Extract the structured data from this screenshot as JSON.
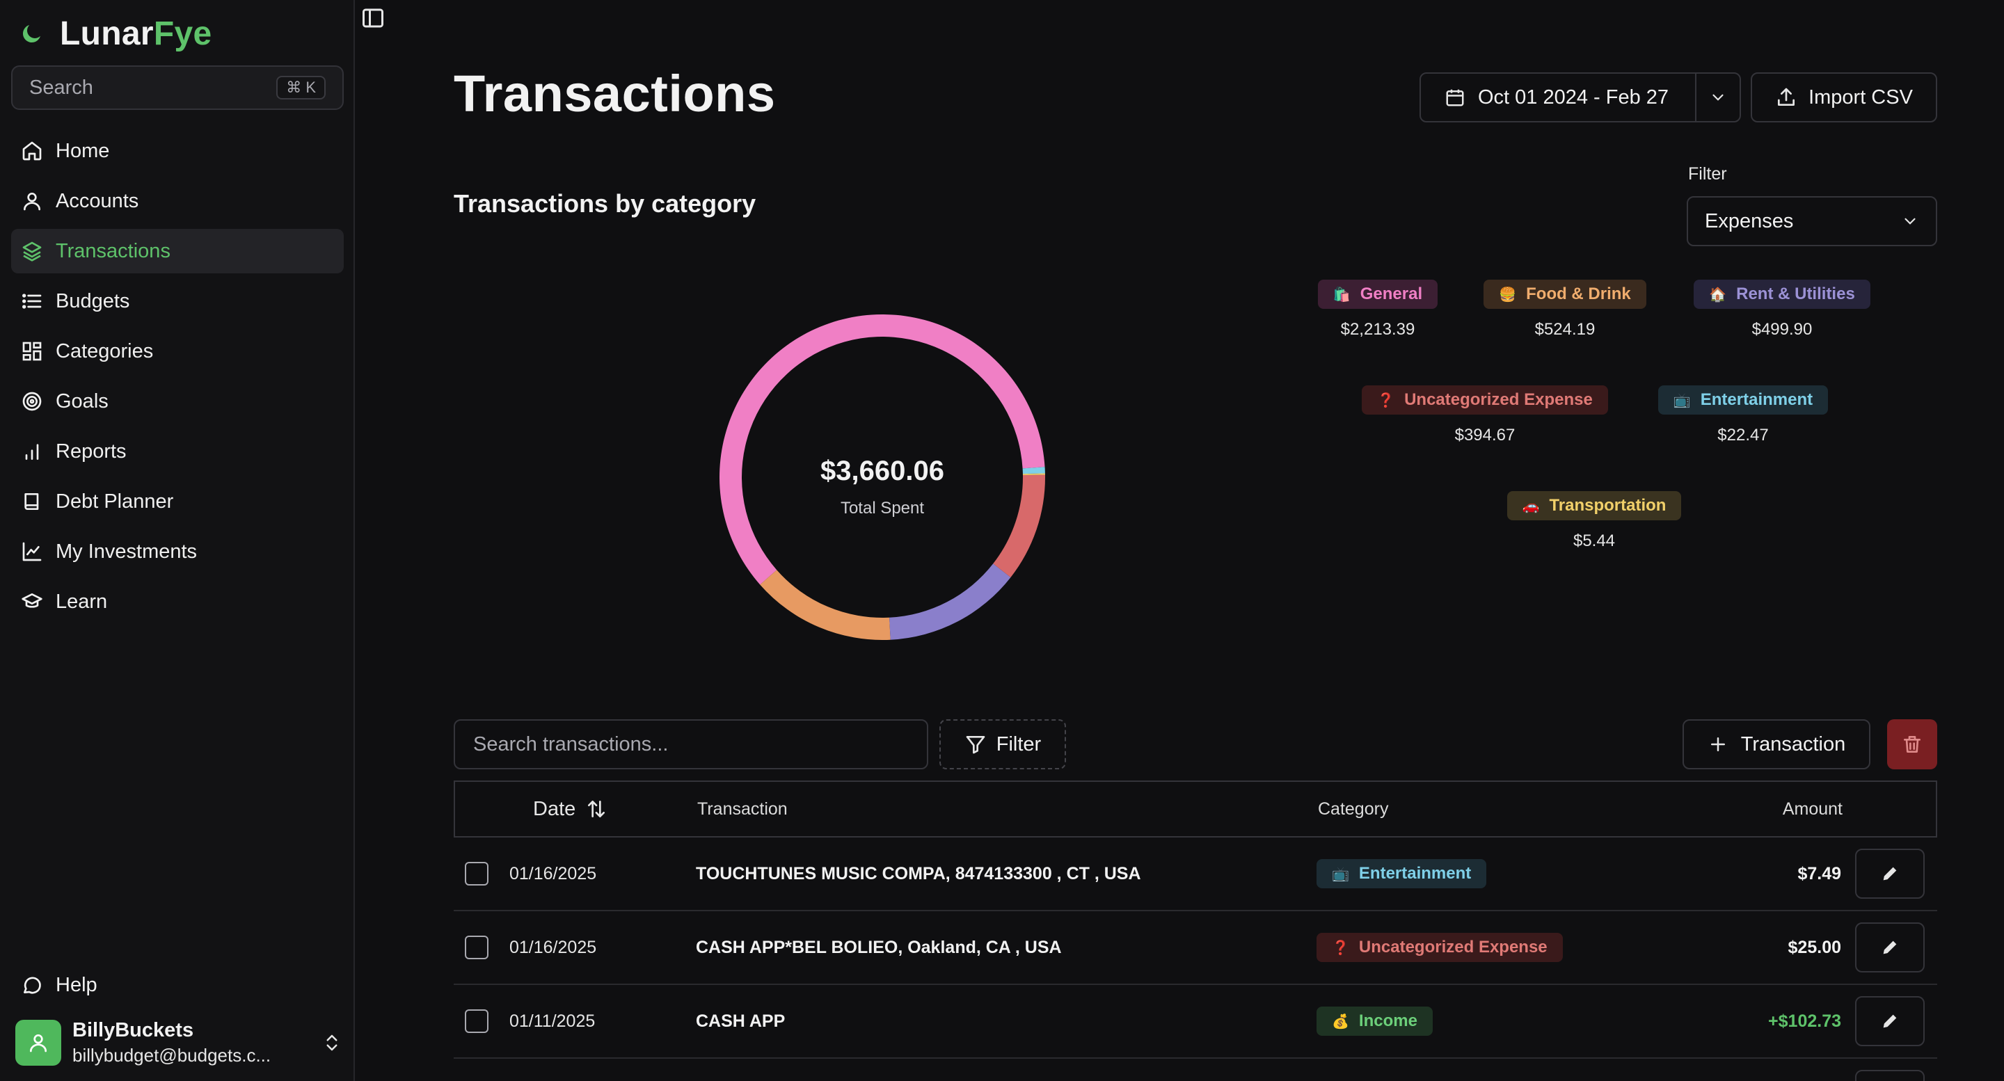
{
  "brand": {
    "name_main": "Lunar",
    "name_accent": "Fye"
  },
  "sidebar": {
    "search_placeholder": "Search",
    "shortcut": "⌘ K",
    "items": [
      {
        "label": "Home",
        "icon": "home-icon"
      },
      {
        "label": "Accounts",
        "icon": "user-icon"
      },
      {
        "label": "Transactions",
        "icon": "layers-icon",
        "active": true
      },
      {
        "label": "Budgets",
        "icon": "list-icon"
      },
      {
        "label": "Categories",
        "icon": "grid-icon"
      },
      {
        "label": "Goals",
        "icon": "target-icon"
      },
      {
        "label": "Reports",
        "icon": "bar-chart-icon"
      },
      {
        "label": "Debt Planner",
        "icon": "book-icon"
      },
      {
        "label": "My Investments",
        "icon": "line-chart-icon"
      },
      {
        "label": "Learn",
        "icon": "graduation-cap-icon"
      }
    ],
    "help": "Help",
    "user": {
      "name": "BillyBuckets",
      "email": "billybudget@budgets.c..."
    }
  },
  "header": {
    "title": "Transactions",
    "date_range": "Oct 01 2024 - Feb 27",
    "import_label": "Import CSV"
  },
  "chart_section": {
    "title": "Transactions by category",
    "filter_label": "Filter",
    "filter_value": "Expenses",
    "total": "$3,660.06",
    "total_label": "Total Spent"
  },
  "chart_data": {
    "type": "pie",
    "variant": "donut",
    "slices": [
      {
        "name": "General",
        "value": 2213.39,
        "color": "#f07fc5"
      },
      {
        "name": "Food & Drink",
        "value": 524.19,
        "color": "#e79a62"
      },
      {
        "name": "Rent & Utilities",
        "value": 499.9,
        "color": "#8a7fcb"
      },
      {
        "name": "Uncategorized Expense",
        "value": 394.67,
        "color": "#d8696a"
      },
      {
        "name": "Entertainment",
        "value": 22.47,
        "color": "#7fd0e8"
      },
      {
        "name": "Transportation",
        "value": 5.44,
        "color": "#f1d06a"
      }
    ]
  },
  "legend": [
    {
      "label": "General",
      "amount": "$2,213.39",
      "icon": "🛍️",
      "cls": "b-general"
    },
    {
      "label": "Food & Drink",
      "amount": "$524.19",
      "icon": "🍔",
      "cls": "b-food"
    },
    {
      "label": "Rent & Utilities",
      "amount": "$499.90",
      "icon": "🏠",
      "cls": "b-rent"
    },
    {
      "label": "Uncategorized Expense",
      "amount": "$394.67",
      "icon": "❓",
      "cls": "b-uncat"
    },
    {
      "label": "Entertainment",
      "amount": "$22.47",
      "icon": "📺",
      "cls": "b-ent"
    },
    {
      "label": "Transportation",
      "amount": "$5.44",
      "icon": "🚗",
      "cls": "b-trans"
    }
  ],
  "toolbar": {
    "search_placeholder": "Search transactions...",
    "filter_label": "Filter",
    "add_label": "Transaction"
  },
  "table": {
    "headers": {
      "date": "Date",
      "transaction": "Transaction",
      "category": "Category",
      "amount": "Amount"
    },
    "rows": [
      {
        "date": "01/16/2025",
        "desc": "TOUCHTUNES MUSIC COMPA, 8474133300 , CT , USA",
        "category": "Entertainment",
        "cat_icon": "📺",
        "cat_cls": "b-ent",
        "amount": "$7.49",
        "positive": false
      },
      {
        "date": "01/16/2025",
        "desc": "CASH APP*BEL BOLIEO, Oakland, CA , USA",
        "category": "Uncategorized Expense",
        "cat_icon": "❓",
        "cat_cls": "b-uncat",
        "amount": "$25.00",
        "positive": false
      },
      {
        "date": "01/11/2025",
        "desc": "CASH APP",
        "category": "Income",
        "cat_icon": "💰",
        "cat_cls": "b-income",
        "amount": "+$102.73",
        "positive": true
      }
    ]
  }
}
